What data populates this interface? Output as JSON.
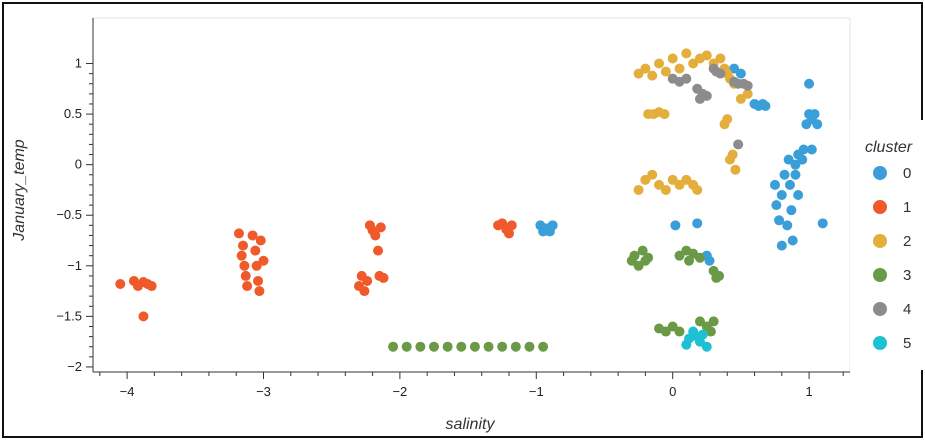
{
  "chart_data": {
    "type": "scatter",
    "xlabel": "salinity",
    "ylabel": "January_temp",
    "xlim": [
      -4.25,
      1.3
    ],
    "ylim": [
      -2.05,
      1.45
    ],
    "x_ticks": [
      -4,
      -3,
      -2,
      -1,
      0,
      1
    ],
    "y_ticks": [
      -2,
      -1.5,
      -1,
      -0.5,
      0,
      0.5,
      1
    ],
    "x_tick_labels": [
      "−4",
      "−3",
      "−2",
      "−1",
      "0",
      "1"
    ],
    "y_tick_labels": [
      "−2",
      "−1.5",
      "−1",
      "−0.5",
      "0",
      "0.5",
      "1"
    ],
    "grid": false,
    "legend_title": "cluster",
    "legend_position": "right",
    "series": [
      {
        "name": "0",
        "color": "#3a9fd8",
        "points": [
          [
            -0.97,
            -0.6
          ],
          [
            -0.92,
            -0.63
          ],
          [
            -0.88,
            -0.6
          ],
          [
            -0.95,
            -0.66
          ],
          [
            -0.9,
            -0.66
          ],
          [
            0.02,
            -0.6
          ],
          [
            0.18,
            -0.58
          ],
          [
            0.2,
            -0.92
          ],
          [
            0.25,
            -0.9
          ],
          [
            0.27,
            -0.95
          ],
          [
            0.45,
            0.95
          ],
          [
            0.5,
            0.9
          ],
          [
            0.6,
            0.6
          ],
          [
            0.63,
            0.58
          ],
          [
            0.66,
            0.6
          ],
          [
            0.68,
            0.58
          ],
          [
            0.75,
            -0.2
          ],
          [
            0.76,
            -0.4
          ],
          [
            0.78,
            -0.55
          ],
          [
            0.8,
            -0.3
          ],
          [
            0.8,
            -0.8
          ],
          [
            0.82,
            -0.1
          ],
          [
            0.84,
            -0.6
          ],
          [
            0.85,
            0.05
          ],
          [
            0.86,
            -0.2
          ],
          [
            0.87,
            -0.45
          ],
          [
            0.88,
            -0.75
          ],
          [
            0.9,
            -0.1
          ],
          [
            0.9,
            0.0
          ],
          [
            0.92,
            -0.3
          ],
          [
            0.92,
            0.1
          ],
          [
            0.95,
            0.05
          ],
          [
            0.96,
            0.15
          ],
          [
            0.98,
            0.4
          ],
          [
            1.0,
            0.8
          ],
          [
            1.0,
            0.5
          ],
          [
            1.02,
            0.15
          ],
          [
            1.02,
            0.45
          ],
          [
            1.04,
            0.5
          ],
          [
            1.06,
            0.4
          ],
          [
            1.1,
            -0.58
          ]
        ]
      },
      {
        "name": "1",
        "color": "#f05a2a",
        "points": [
          [
            -4.05,
            -1.18
          ],
          [
            -3.95,
            -1.15
          ],
          [
            -3.92,
            -1.2
          ],
          [
            -3.88,
            -1.16
          ],
          [
            -3.85,
            -1.18
          ],
          [
            -3.82,
            -1.2
          ],
          [
            -3.88,
            -1.5
          ],
          [
            -3.18,
            -0.68
          ],
          [
            -3.15,
            -0.8
          ],
          [
            -3.16,
            -0.9
          ],
          [
            -3.14,
            -1.0
          ],
          [
            -3.13,
            -1.1
          ],
          [
            -3.12,
            -1.2
          ],
          [
            -3.08,
            -0.7
          ],
          [
            -3.06,
            -0.85
          ],
          [
            -3.05,
            -1.0
          ],
          [
            -3.04,
            -1.15
          ],
          [
            -3.03,
            -1.25
          ],
          [
            -3.02,
            -0.75
          ],
          [
            -3.0,
            -0.95
          ],
          [
            -2.3,
            -1.2
          ],
          [
            -2.28,
            -1.1
          ],
          [
            -2.26,
            -1.25
          ],
          [
            -2.24,
            -1.15
          ],
          [
            -2.22,
            -0.6
          ],
          [
            -2.2,
            -0.65
          ],
          [
            -2.18,
            -0.7
          ],
          [
            -2.16,
            -0.85
          ],
          [
            -2.15,
            -1.1
          ],
          [
            -2.12,
            -1.12
          ],
          [
            -2.14,
            -0.62
          ],
          [
            -1.28,
            -0.6
          ],
          [
            -1.25,
            -0.58
          ],
          [
            -1.22,
            -0.64
          ],
          [
            -1.2,
            -0.68
          ],
          [
            -1.18,
            -0.6
          ]
        ]
      },
      {
        "name": "2",
        "color": "#e3ae3c",
        "points": [
          [
            -0.25,
            0.9
          ],
          [
            -0.2,
            0.95
          ],
          [
            -0.15,
            0.88
          ],
          [
            -0.1,
            1.0
          ],
          [
            -0.05,
            0.92
          ],
          [
            0.0,
            1.05
          ],
          [
            0.05,
            0.95
          ],
          [
            0.1,
            1.1
          ],
          [
            0.15,
            1.0
          ],
          [
            0.2,
            1.05
          ],
          [
            0.25,
            1.08
          ],
          [
            0.3,
            1.0
          ],
          [
            0.35,
            1.05
          ],
          [
            0.38,
            0.95
          ],
          [
            0.4,
            0.9
          ],
          [
            0.42,
            0.85
          ],
          [
            0.45,
            0.8
          ],
          [
            0.5,
            0.65
          ],
          [
            0.55,
            0.7
          ],
          [
            -0.18,
            0.5
          ],
          [
            -0.14,
            0.5
          ],
          [
            -0.1,
            0.52
          ],
          [
            -0.06,
            0.5
          ],
          [
            -0.25,
            -0.25
          ],
          [
            -0.2,
            -0.15
          ],
          [
            -0.15,
            -0.1
          ],
          [
            -0.1,
            -0.2
          ],
          [
            -0.05,
            -0.25
          ],
          [
            0.0,
            -0.15
          ],
          [
            0.05,
            -0.2
          ],
          [
            0.1,
            -0.15
          ],
          [
            0.15,
            -0.2
          ],
          [
            0.18,
            -0.25
          ],
          [
            0.38,
            0.4
          ],
          [
            0.4,
            0.45
          ],
          [
            0.42,
            0.05
          ],
          [
            0.44,
            0.1
          ],
          [
            0.46,
            -0.05
          ]
        ]
      },
      {
        "name": "3",
        "color": "#6a9a48",
        "points": [
          [
            -2.05,
            -1.8
          ],
          [
            -1.95,
            -1.8
          ],
          [
            -1.85,
            -1.8
          ],
          [
            -1.75,
            -1.8
          ],
          [
            -1.65,
            -1.8
          ],
          [
            -1.55,
            -1.8
          ],
          [
            -1.45,
            -1.8
          ],
          [
            -1.35,
            -1.8
          ],
          [
            -1.25,
            -1.8
          ],
          [
            -1.15,
            -1.8
          ],
          [
            -1.05,
            -1.8
          ],
          [
            -0.95,
            -1.8
          ],
          [
            -0.3,
            -0.95
          ],
          [
            -0.28,
            -0.9
          ],
          [
            -0.25,
            -1.0
          ],
          [
            -0.22,
            -0.85
          ],
          [
            -0.2,
            -0.95
          ],
          [
            -0.18,
            -0.92
          ],
          [
            0.05,
            -0.9
          ],
          [
            0.1,
            -0.85
          ],
          [
            0.12,
            -0.95
          ],
          [
            0.15,
            -0.88
          ],
          [
            0.2,
            -0.92
          ],
          [
            0.3,
            -1.05
          ],
          [
            0.32,
            -1.12
          ],
          [
            0.34,
            -1.1
          ],
          [
            -0.1,
            -1.62
          ],
          [
            -0.05,
            -1.65
          ],
          [
            0.0,
            -1.6
          ],
          [
            0.05,
            -1.65
          ],
          [
            0.2,
            -1.55
          ],
          [
            0.25,
            -1.6
          ],
          [
            0.28,
            -1.65
          ],
          [
            0.3,
            -1.55
          ]
        ]
      },
      {
        "name": "4",
        "color": "#8c8c8c",
        "points": [
          [
            0.0,
            0.85
          ],
          [
            0.05,
            0.82
          ],
          [
            0.1,
            0.85
          ],
          [
            0.18,
            0.75
          ],
          [
            0.2,
            0.65
          ],
          [
            0.22,
            0.7
          ],
          [
            0.25,
            0.68
          ],
          [
            0.3,
            0.95
          ],
          [
            0.32,
            0.92
          ],
          [
            0.35,
            0.9
          ],
          [
            0.45,
            0.82
          ],
          [
            0.48,
            0.8
          ],
          [
            0.52,
            0.8
          ],
          [
            0.55,
            0.78
          ],
          [
            0.48,
            0.2
          ]
        ]
      },
      {
        "name": "5",
        "color": "#1ec1d3",
        "points": [
          [
            0.1,
            -1.78
          ],
          [
            0.12,
            -1.72
          ],
          [
            0.15,
            -1.65
          ],
          [
            0.18,
            -1.7
          ],
          [
            0.2,
            -1.75
          ],
          [
            0.22,
            -1.68
          ],
          [
            0.25,
            -1.8
          ]
        ]
      }
    ]
  }
}
